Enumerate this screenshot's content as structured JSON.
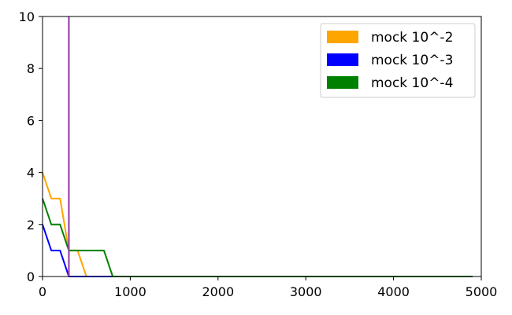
{
  "chart_data": {
    "type": "line",
    "title": "",
    "xlabel": "",
    "ylabel": "",
    "xlim": [
      0,
      5000
    ],
    "ylim": [
      0,
      10
    ],
    "xticks": [
      0,
      1000,
      2000,
      3000,
      4000,
      5000
    ],
    "yticks": [
      0,
      2,
      4,
      6,
      8,
      10
    ],
    "grid": false,
    "legend_position": "top-right",
    "vertical_line": {
      "x": 300,
      "color": "#9b45a8"
    },
    "series": [
      {
        "name": "mock 10^-2",
        "color": "#ffa500",
        "x": [
          0,
          100,
          200,
          300,
          400,
          500
        ],
        "y": [
          4,
          3,
          3,
          1,
          1,
          0
        ]
      },
      {
        "name": "mock 10^-3",
        "color": "#0000ff",
        "x": [
          0,
          100,
          200,
          300,
          400,
          500,
          600,
          700,
          800,
          4900
        ],
        "y": [
          2,
          1,
          1,
          0,
          0,
          0,
          0,
          0,
          0,
          0
        ]
      },
      {
        "name": "mock 10^-4",
        "color": "#008000",
        "x": [
          0,
          100,
          200,
          300,
          400,
          500,
          600,
          700,
          800,
          4900
        ],
        "y": [
          3,
          2,
          2,
          1,
          1,
          1,
          1,
          1,
          0,
          0
        ]
      }
    ]
  }
}
